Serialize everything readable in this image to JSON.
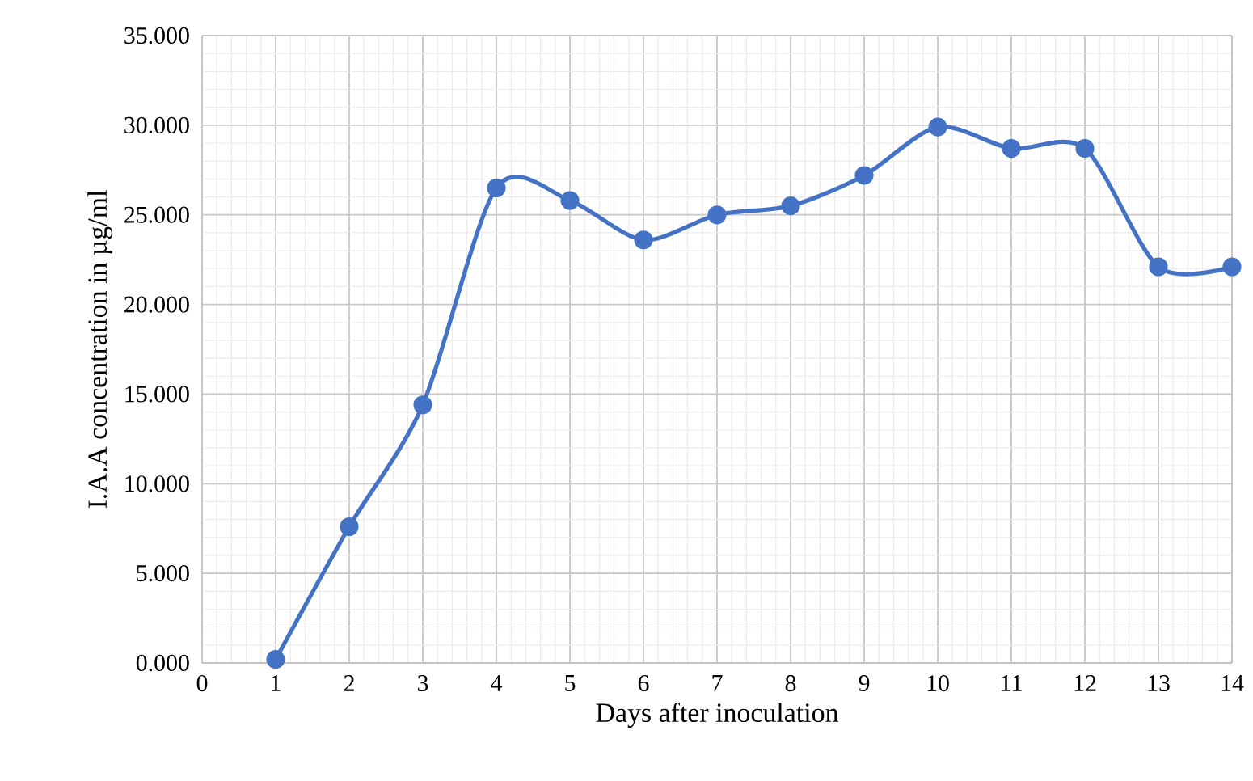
{
  "chart_data": {
    "type": "line",
    "xlabel": "Days after inoculation",
    "ylabel": "I.A.A concentration in µg/ml",
    "x": [
      1,
      2,
      3,
      4,
      5,
      6,
      7,
      8,
      9,
      10,
      11,
      12,
      13,
      14
    ],
    "values": [
      0.2,
      7.6,
      14.4,
      26.5,
      25.8,
      23.6,
      25.0,
      25.5,
      27.2,
      29.9,
      28.7,
      28.7,
      22.1,
      22.1
    ],
    "color": "#4472c4",
    "marker": "circle",
    "grid": true,
    "xlim": [
      0,
      14
    ],
    "xticks": [
      0,
      1,
      2,
      3,
      4,
      5,
      6,
      7,
      8,
      9,
      10,
      11,
      12,
      13,
      14
    ],
    "ylim": [
      0,
      35
    ],
    "yticks": [
      {
        "value": 0,
        "label": "0.000"
      },
      {
        "value": 5,
        "label": "5.000"
      },
      {
        "value": 10,
        "label": "10.000"
      },
      {
        "value": 15,
        "label": "15.000"
      },
      {
        "value": 20,
        "label": "20.000"
      },
      {
        "value": 25,
        "label": "25.000"
      },
      {
        "value": 30,
        "label": "30.000"
      },
      {
        "value": 35,
        "label": "35.000"
      }
    ]
  }
}
